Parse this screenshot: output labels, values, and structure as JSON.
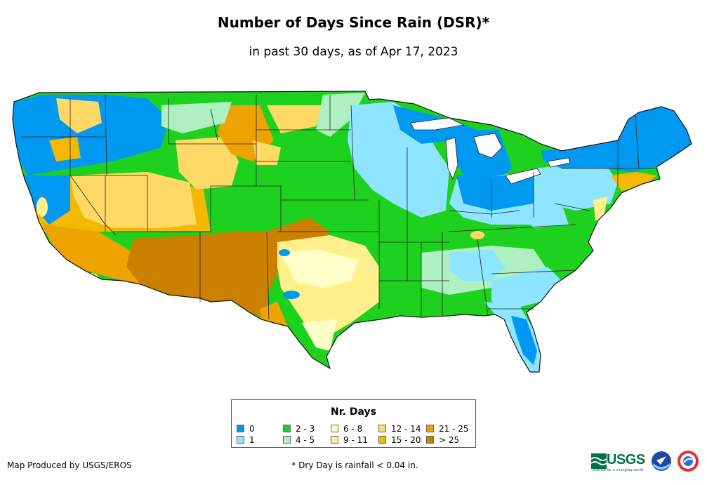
{
  "title": "Number of Days Since Rain (DSR)*",
  "subtitle": "in past 30 days, as of Apr 17, 2023",
  "legend": {
    "title": "Nr. Days",
    "items": [
      {
        "label": "0",
        "color": "#0099f2"
      },
      {
        "label": "1",
        "color": "#8ee5ff"
      },
      {
        "label": "2 - 3",
        "color": "#1fd11f"
      },
      {
        "label": "4 - 5",
        "color": "#aef0c0"
      },
      {
        "label": "6 - 8",
        "color": "#ffffc8"
      },
      {
        "label": "9 - 11",
        "color": "#fff08c"
      },
      {
        "label": "12 - 14",
        "color": "#ffd966"
      },
      {
        "label": "15 - 20",
        "color": "#f5b800"
      },
      {
        "label": "21 - 25",
        "color": "#eda300"
      },
      {
        "label": "> 25",
        "color": "#cc8000"
      }
    ]
  },
  "footer": {
    "credit": "Map Produced by USGS/EROS",
    "footnote": "* Dry Day is rainfall < 0.04 in."
  },
  "logos": {
    "usgs": "USGS",
    "usgs_tagline": "science for a changing world",
    "noaa": "NOAA",
    "nws": "NWS"
  }
}
